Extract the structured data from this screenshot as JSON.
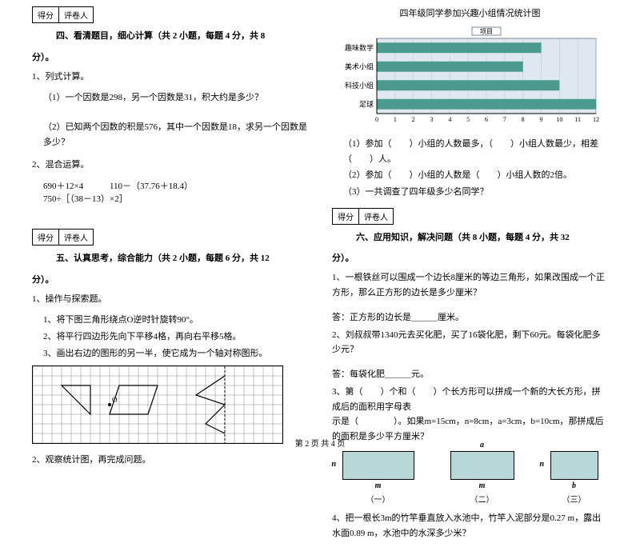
{
  "scorebox": {
    "score": "得分",
    "grader": "评卷人"
  },
  "sec4": {
    "title": "四、看清题目，细心计算（共 2 小题，每题 4 分，共 8",
    "pts": "分）。",
    "q1": "1、列式计算。",
    "q1a": "（1）一个因数是298，另一个因数是31，积大约是多少？",
    "q1b": "（2）已知两个因数的积是576，其中一个因数是18，求另一个因数是多少？",
    "q2": "2、混合运算。",
    "calc1": "690＋12×4",
    "calc2": "110－（37.76＋18.4）",
    "calc3": "750÷［（38－13）×2］"
  },
  "sec5": {
    "title": "五、认真思考，综合能力（共 2 小题，每题 6 分，共 12",
    "pts": "分）。",
    "q1": "1、操作与探索题。",
    "q1a": "1、将下图三角形绕点O逆时针旋转90°。",
    "q1b": "2、将平行四边形先向下平移4格，再向右平移5格。",
    "q1c": "3、画出右边的图形的另一半，使它成为一个轴对称图形。",
    "q2": "2、观察统计图，再完成问题。",
    "grid": {
      "rows": 8,
      "cols": 26,
      "cell": 12
    }
  },
  "chart": {
    "title": "四年级同学参加兴趣小组情况统计图",
    "legendLabel": "项目",
    "categories": [
      "趣味数学",
      "美术小组",
      "科技小组",
      "足球"
    ],
    "values": [
      9,
      8,
      10,
      12
    ],
    "xmax": 12,
    "xtick_step": 1,
    "bar_color": "#4a9b8e",
    "bg_color": "#dfe8ef",
    "grid_color": "#b8c5d0",
    "border_color": "#7a8a9a",
    "label_fontsize": 9,
    "q1": "（1）参加（　　）小组的人数最多，（　　）小组人数最少，相差（　　）人。",
    "q2": "（2）参加（　　）小组的人数是（　　）小组人数的2倍。",
    "q3": "（3）一共调查了四年级多少名同学？"
  },
  "sec6": {
    "title": "六、应用知识，解决问题（共 8 小题，每题 4 分，共 32",
    "pts": "分）。",
    "q1": "1、一根铁丝可以围成一个边长8厘米的等边三角形，如果改围成一个正方形，那么正方形的边长是多少厘米？",
    "a1": "答：正方形的边长是＿＿＿厘米。",
    "q2": "2、刘叔叔带1340元去买化肥，买了16袋化肥，剩下60元。每袋化肥多少元？",
    "a2": "答：每袋化肥＿＿＿元。",
    "q3a": "3、第（　　）个和（　　）个长方形可以拼成一个新的大长方形，拼成后的面积用字母表",
    "q3b": "示是（　　　　）。如果m=15cm，n=8cm，a=3cm，b=10cm，那拼成后的面积是多少平方厘米？",
    "rects": {
      "r1": {
        "left": "n",
        "bot": "m",
        "cap": "（一）"
      },
      "r2": {
        "top": "a",
        "bot": "m",
        "cap": "（二）"
      },
      "r3": {
        "left": "n",
        "right": "",
        "bot": "b",
        "cap": "（三）"
      }
    },
    "q4": "4、把一根长3m的竹竿垂直放入水池中，竹竿入泥部分是0.27 m，露出水面0.89 m，水池中的水深多少米？"
  },
  "footer": "第 2 页  共 4 页"
}
